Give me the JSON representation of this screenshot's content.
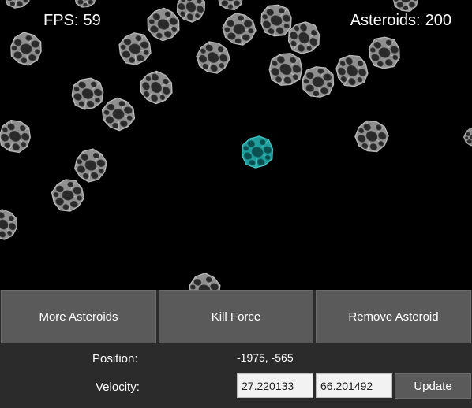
{
  "hud": {
    "fps_label": "FPS:",
    "fps_value": "59",
    "asteroids_label": "Asteroids:",
    "asteroids_value": "200"
  },
  "controls": {
    "more_asteroids": "More Asteroids",
    "kill_force": "Kill Force",
    "remove_asteroid": "Remove Asteroid",
    "position_label": "Position:",
    "position_value": "-1975, -565",
    "velocity_label": "Velocity:",
    "velocity_x": "27.220133",
    "velocity_y": "66.201492",
    "update": "Update"
  },
  "colors": {
    "background": "#000000",
    "asteroid": "#8a8a8a",
    "selected_asteroid": "#1f9c9c",
    "button": "#5a5a5a",
    "panel": "#2b2b2b"
  }
}
